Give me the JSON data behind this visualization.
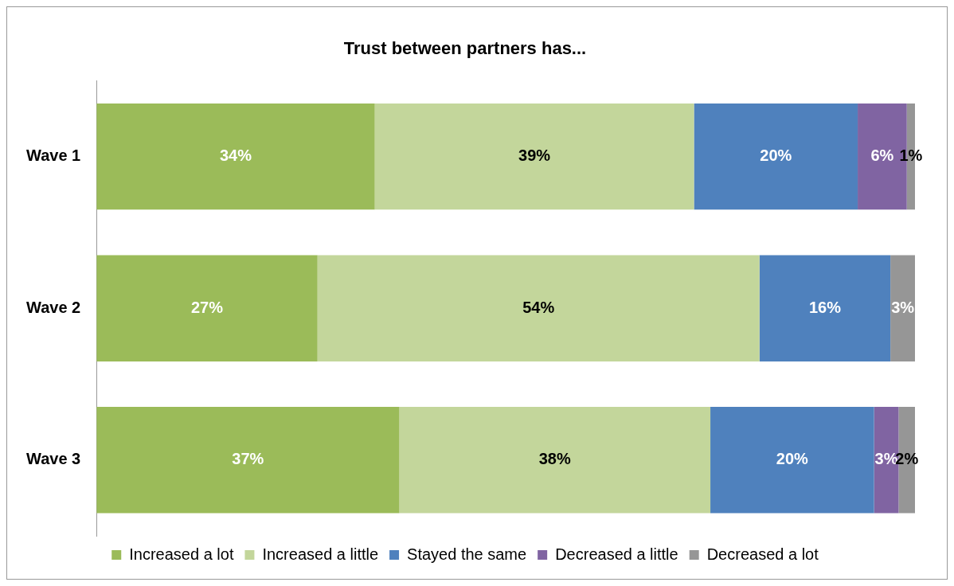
{
  "chart_data": {
    "type": "bar",
    "title": "Trust between partners has...",
    "orientation": "horizontal",
    "stacked": true,
    "categories": [
      "Wave 1",
      "Wave 2",
      "Wave 3"
    ],
    "series": [
      {
        "name": "Increased a lot",
        "color": "#9bbb59",
        "values": [
          34,
          27,
          37
        ],
        "value_labels": [
          "34%",
          "27%",
          "37%"
        ]
      },
      {
        "name": "Increased a little",
        "color": "#c3d69b",
        "values": [
          39,
          54,
          38
        ],
        "value_labels": [
          "39%",
          "54%",
          "38%"
        ]
      },
      {
        "name": "Stayed the same",
        "color": "#4f81bd",
        "values": [
          20,
          16,
          20
        ],
        "value_labels": [
          "20%",
          "16%",
          "20%"
        ]
      },
      {
        "name": "Decreased a little",
        "color": "#8064a2",
        "values": [
          6,
          null,
          3
        ],
        "value_labels": [
          "6%",
          null,
          "3%"
        ]
      },
      {
        "name": "Decreased a lot",
        "color": "#969696",
        "values": [
          1,
          3,
          2
        ],
        "value_labels": [
          "1%",
          "3%",
          "2%"
        ]
      }
    ],
    "xlim": [
      0,
      100
    ],
    "tick_labels": "y",
    "grid": false,
    "legend": "bottom"
  }
}
